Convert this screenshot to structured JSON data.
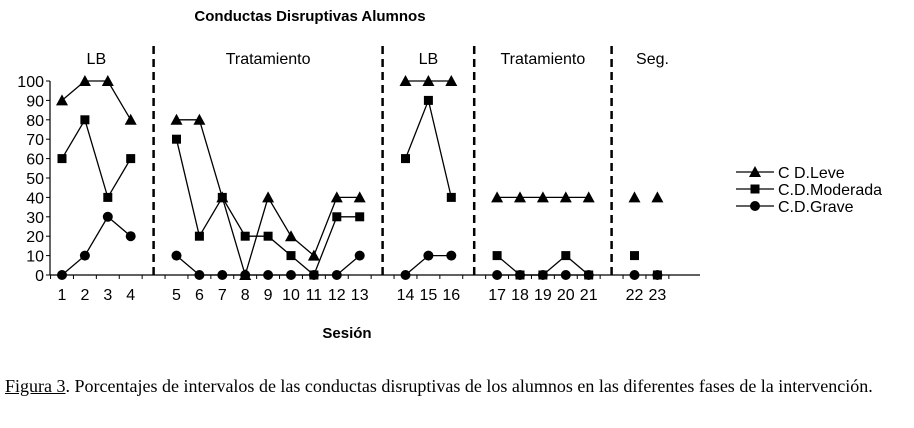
{
  "chart_data": {
    "type": "line",
    "title": "Conductas Disruptivas Alumnos",
    "xlabel": "Sesión",
    "ylabel": "",
    "ylim": [
      0,
      100
    ],
    "yticks": [
      "0",
      "10",
      "20",
      "30",
      "40",
      "50",
      "60",
      "70",
      "80",
      "90",
      "100"
    ],
    "phases": [
      {
        "label": "LB",
        "sessions": [
          1,
          2,
          3,
          4
        ]
      },
      {
        "label": "Tratamiento",
        "sessions": [
          5,
          6,
          7,
          8,
          9,
          10,
          11,
          12,
          13
        ]
      },
      {
        "label": "LB",
        "sessions": [
          14,
          15,
          16
        ]
      },
      {
        "label": "Tratamiento",
        "sessions": [
          17,
          18,
          19,
          20,
          21
        ]
      },
      {
        "label": "Seg.",
        "sessions": [
          22,
          23
        ]
      }
    ],
    "x": [
      1,
      2,
      3,
      4,
      5,
      6,
      7,
      8,
      9,
      10,
      11,
      12,
      13,
      14,
      15,
      16,
      17,
      18,
      19,
      20,
      21,
      22,
      23
    ],
    "series": [
      {
        "name": "C D.Leve",
        "marker": "triangle",
        "values": [
          90,
          100,
          100,
          80,
          80,
          80,
          40,
          0,
          40,
          20,
          10,
          40,
          40,
          100,
          100,
          100,
          40,
          40,
          40,
          40,
          40,
          40,
          40
        ]
      },
      {
        "name": "C.D.Moderada",
        "marker": "square",
        "values": [
          60,
          80,
          40,
          60,
          70,
          20,
          40,
          20,
          20,
          10,
          0,
          30,
          30,
          60,
          90,
          40,
          10,
          0,
          0,
          10,
          0,
          10,
          0
        ]
      },
      {
        "name": "C.D.Grave",
        "marker": "circle",
        "values": [
          0,
          10,
          30,
          20,
          10,
          0,
          0,
          0,
          0,
          0,
          0,
          0,
          10,
          0,
          10,
          10,
          0,
          0,
          0,
          0,
          0,
          0,
          0
        ]
      }
    ],
    "legend_position": "right",
    "grid": false
  },
  "caption": {
    "figure_label": "Figura 3",
    "text": ". Porcentajes de intervalos de las conductas disruptivas de los alumnos en las diferentes fases de la intervención."
  }
}
